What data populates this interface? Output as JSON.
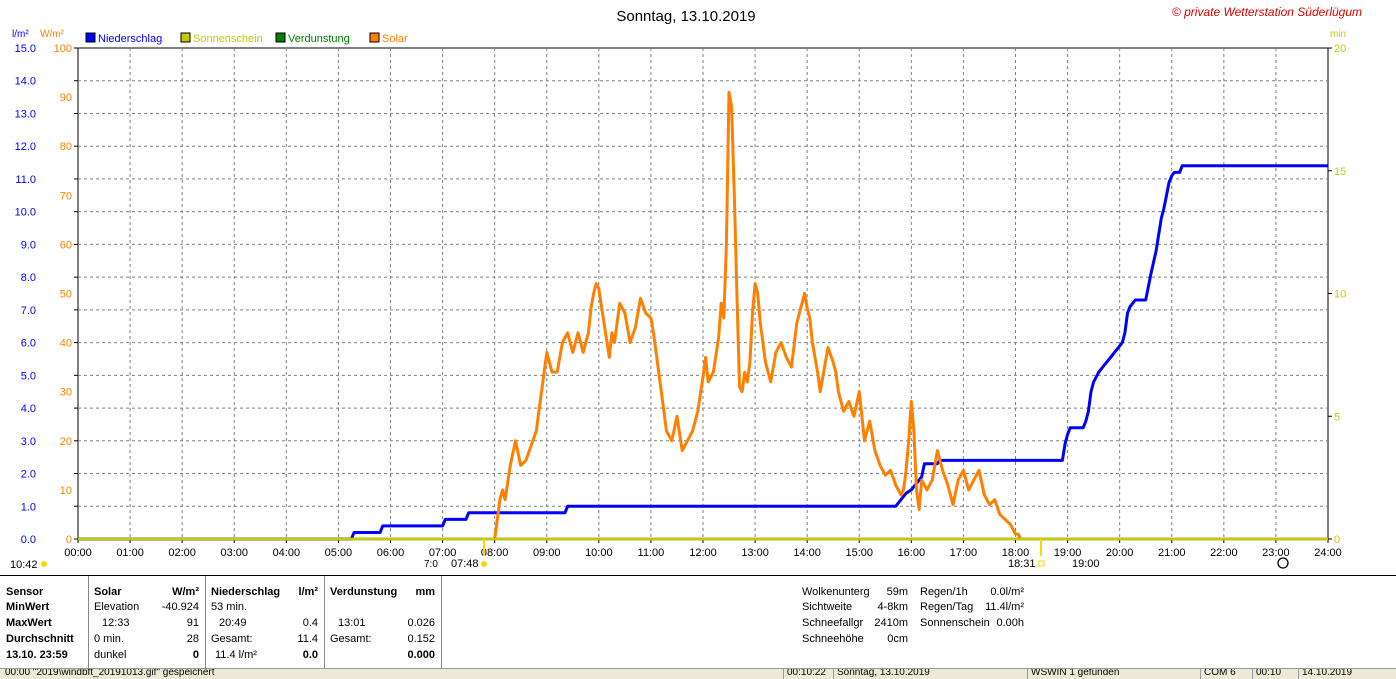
{
  "title": "Sonntag, 13.10.2019",
  "watermark": "© private Wetterstation Süderlügum",
  "axis": {
    "left1_unit": "l/m²",
    "left2_unit": "W/m²",
    "right_unit": "min",
    "left1_ticks": [
      "0.0",
      "1.0",
      "2.0",
      "3.0",
      "4.0",
      "5.0",
      "6.0",
      "7.0",
      "8.0",
      "9.0",
      "10.0",
      "11.0",
      "12.0",
      "13.0",
      "14.0",
      "15.0"
    ],
    "left2_ticks": [
      "0",
      "10",
      "20",
      "30",
      "40",
      "50",
      "60",
      "70",
      "80",
      "90",
      "100"
    ],
    "right_ticks": [
      "0",
      "5",
      "10",
      "15",
      "20"
    ],
    "x_ticks": [
      "00:00",
      "01:00",
      "02:00",
      "03:00",
      "04:00",
      "05:00",
      "06:00",
      "07:00",
      "08:00",
      "09:00",
      "10:00",
      "11:00",
      "12:00",
      "13:00",
      "14:00",
      "15:00",
      "16:00",
      "17:00",
      "18:00",
      "19:00",
      "20:00",
      "21:00",
      "22:00",
      "23:00",
      "24:00"
    ]
  },
  "legend": [
    {
      "name": "Niederschlag",
      "color": "#0000ff",
      "text_color": "#0000ff"
    },
    {
      "name": "Sonnenschein",
      "color": "#c8c800",
      "text_color": "#c8c800"
    },
    {
      "name": "Verdunstung",
      "color": "#008000",
      "text_color": "#008000"
    },
    {
      "name": "Solar",
      "color": "#ff8000",
      "text_color": "#ff8000"
    }
  ],
  "markers": {
    "moon_time": "10:42",
    "sunrise_time": "07:48",
    "sunrise_prefix": "7:0",
    "sunset_time": "18:31",
    "sunset_suffix": "19:00"
  },
  "chart_data": {
    "type": "line",
    "xlim": [
      0,
      24
    ],
    "series": [
      {
        "name": "Niederschlag",
        "unit": "l/m²",
        "ylim": [
          0,
          15
        ],
        "x": [
          0,
          5.25,
          5.3,
          5.8,
          5.85,
          7.0,
          7.05,
          7.45,
          7.5,
          9.35,
          9.4,
          15.7,
          15.8,
          15.85,
          15.9,
          16.0,
          16.05,
          16.1,
          16.2,
          16.25,
          16.5,
          16.55,
          18.9,
          18.95,
          19.0,
          19.05,
          19.3,
          19.35,
          19.4,
          19.45,
          19.5,
          19.6,
          19.7,
          19.8,
          19.9,
          20.0,
          20.05,
          20.1,
          20.15,
          20.2,
          20.3,
          20.5,
          20.55,
          20.6,
          20.7,
          20.75,
          20.8,
          20.85,
          20.9,
          20.95,
          21.0,
          21.05,
          21.15,
          21.2,
          24.0
        ],
        "values": [
          0,
          0,
          0.2,
          0.2,
          0.4,
          0.4,
          0.6,
          0.6,
          0.8,
          0.8,
          1.0,
          1.0,
          1.2,
          1.3,
          1.4,
          1.5,
          1.6,
          1.7,
          1.9,
          2.3,
          2.3,
          2.4,
          2.4,
          2.9,
          3.2,
          3.4,
          3.4,
          3.6,
          3.9,
          4.5,
          4.8,
          5.1,
          5.3,
          5.5,
          5.7,
          5.9,
          6.0,
          6.3,
          6.9,
          7.1,
          7.3,
          7.3,
          7.7,
          8.1,
          8.8,
          9.3,
          9.8,
          10.1,
          10.5,
          10.9,
          11.1,
          11.2,
          11.2,
          11.4,
          11.4
        ]
      },
      {
        "name": "Solar",
        "unit": "W/m²",
        "ylim": [
          0,
          100
        ],
        "x": [
          8.0,
          8.05,
          8.1,
          8.15,
          8.2,
          8.3,
          8.4,
          8.5,
          8.6,
          8.7,
          8.8,
          8.9,
          9.0,
          9.1,
          9.2,
          9.3,
          9.4,
          9.5,
          9.6,
          9.7,
          9.8,
          9.85,
          9.9,
          9.95,
          10.0,
          10.1,
          10.2,
          10.25,
          10.3,
          10.4,
          10.5,
          10.6,
          10.7,
          10.75,
          10.8,
          10.9,
          11.0,
          11.05,
          11.1,
          11.2,
          11.3,
          11.4,
          11.5,
          11.6,
          11.7,
          11.8,
          11.9,
          12.0,
          12.05,
          12.1,
          12.2,
          12.3,
          12.35,
          12.4,
          12.45,
          12.5,
          12.55,
          12.6,
          12.65,
          12.7,
          12.75,
          12.8,
          12.85,
          12.9,
          12.95,
          13.0,
          13.05,
          13.1,
          13.15,
          13.2,
          13.3,
          13.4,
          13.5,
          13.6,
          13.7,
          13.8,
          13.85,
          13.9,
          13.95,
          14.0,
          14.05,
          14.1,
          14.2,
          14.25,
          14.3,
          14.4,
          14.5,
          14.55,
          14.6,
          14.7,
          14.8,
          14.9,
          15.0,
          15.1,
          15.2,
          15.3,
          15.4,
          15.5,
          15.6,
          15.7,
          15.8,
          15.85,
          15.9,
          15.95,
          16.0,
          16.05,
          16.1,
          16.15,
          16.2,
          16.3,
          16.4,
          16.5,
          16.6,
          16.7,
          16.8,
          16.9,
          17.0,
          17.1,
          17.2,
          17.3,
          17.4,
          17.5,
          17.6,
          17.7,
          17.8,
          17.9,
          17.95,
          18.0,
          18.05,
          18.1
        ],
        "values": [
          0,
          4,
          8,
          10,
          8,
          15,
          20,
          15,
          16,
          19,
          22,
          30,
          38,
          34,
          34,
          40,
          42,
          38,
          42,
          38,
          42,
          47,
          50,
          52,
          51,
          44,
          37,
          42,
          40,
          48,
          46,
          40,
          43,
          46,
          49,
          46,
          45,
          42,
          38,
          30,
          22,
          20,
          25,
          18,
          20,
          22,
          26,
          33,
          37,
          32,
          34,
          41,
          48,
          45,
          60,
          91,
          88,
          70,
          50,
          31,
          30,
          34,
          32,
          36,
          46,
          52,
          50,
          44,
          40,
          36,
          32,
          38,
          40,
          37,
          35,
          44,
          46,
          48,
          50,
          47,
          45,
          40,
          34,
          30,
          33,
          39,
          36,
          34,
          30,
          26,
          28,
          25,
          30,
          20,
          24,
          18,
          15,
          13,
          14,
          11,
          9,
          10,
          14,
          20,
          28,
          22,
          10,
          6,
          12,
          10,
          12,
          18,
          14,
          11,
          7,
          12,
          14,
          10,
          12,
          14,
          9,
          7,
          8,
          5,
          4,
          3,
          2,
          1,
          1,
          0
        ]
      },
      {
        "name": "Verdunstung",
        "unit": "mm",
        "x": [
          0,
          24
        ],
        "values": [
          0,
          0
        ]
      },
      {
        "name": "Sonnenschein",
        "unit": "min",
        "ylim": [
          0,
          20
        ],
        "x": [
          0,
          24
        ],
        "values": [
          0,
          0
        ]
      }
    ]
  },
  "panel": {
    "sensor": {
      "header": "Sensor",
      "min": "MinWert",
      "max": "MaxWert",
      "avg": "Durchschnitt",
      "date": "13.10. 23:59"
    },
    "solar": {
      "header": "Solar",
      "unit": "W/m²",
      "r1_l": "Elevation",
      "r1_r": "-40.924",
      "r2_l": "12:33",
      "r2_r": "91",
      "r3_l": "0 min.",
      "r3_r": "28",
      "r4_l": "dunkel",
      "r4_r": "0"
    },
    "rain": {
      "header": "Niederschlag",
      "unit": "l/m²",
      "r1_l": "53 min.",
      "r2_l": "20:49",
      "r2_r": "0.4",
      "r3_l": "Gesamt:",
      "r3_r": "11.4",
      "r4_l": "11.4 l/m²",
      "r4_r": "0.0"
    },
    "evap": {
      "header": "Verdunstung",
      "unit": "mm",
      "r2_l": "13:01",
      "r2_r": "0.026",
      "r3_l": "Gesamt:",
      "r3_r": "0.152",
      "r4_r": "0.000"
    },
    "cloud": {
      "r0_l": "Wolkenunterg",
      "r0_r": "59m",
      "r1_l": "Sichtweite",
      "r1_r": "4-8km",
      "r2_l": "Schneefallgr",
      "r2_r": "2410m",
      "r3_l": "Schneehöhe",
      "r3_r": "0cm"
    },
    "rainx": {
      "r0_l": "Regen/1h",
      "r0_r": "0.0l/m²",
      "r1_l": "Regen/Tag",
      "r1_r": "11.4l/m²",
      "r2_l": "Sonnenschein",
      "r2_r": "0.00h"
    }
  },
  "status": {
    "s1": "00:00  \"2019\\windbft_20191013.gif\" gespeichert",
    "s2": "00:10:22",
    "s3": "Sonntag, 13.10.2019",
    "s4": "WSWIN 1 gefunden",
    "s5": "COM 6",
    "s6": "00:10",
    "s7": "14.10.2019"
  }
}
